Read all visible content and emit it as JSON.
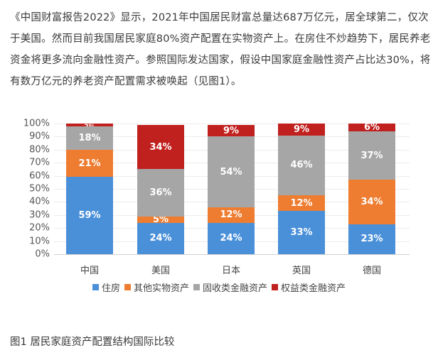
{
  "article": {
    "paragraph": "《中国财富报告2022》显示，2021年中国居民财富总量达687万亿元，居全球第二，仅次于美国。然而目前我国居民家庭80%资产配置在实物资产上。在房住不炒趋势下，居民养老资金将更多流向金融性资产。参照国际发达国家，假设中国家庭金融性资产占比达30%，将有数万亿元的养老资产配置需求被唤起（见图1）。",
    "caption": "图1 居民家庭资产配置结构国际比较"
  },
  "chart_data": {
    "type": "bar",
    "stacked": true,
    "title": "",
    "xlabel": "",
    "ylabel": "",
    "ylim": [
      0,
      100
    ],
    "yticks": [
      "0%",
      "10%",
      "20%",
      "30%",
      "40%",
      "50%",
      "60%",
      "70%",
      "80%",
      "90%",
      "100%"
    ],
    "categories": [
      "中国",
      "美国",
      "日本",
      "英国",
      "德国"
    ],
    "series": [
      {
        "name": "住房",
        "color": "#4a90d9",
        "values": [
          59,
          24,
          24,
          33,
          23
        ]
      },
      {
        "name": "其他实物资产",
        "color": "#ee7d31",
        "values": [
          21,
          5,
          12,
          12,
          34
        ]
      },
      {
        "name": "固收类金融资产",
        "color": "#a6a6a6",
        "values": [
          18,
          36,
          54,
          46,
          37
        ]
      },
      {
        "name": "权益类金融资产",
        "color": "#c0201e",
        "values": [
          2,
          34,
          9,
          9,
          6
        ]
      }
    ],
    "data_labels": true,
    "legend_position": "bottom",
    "grid": true
  }
}
